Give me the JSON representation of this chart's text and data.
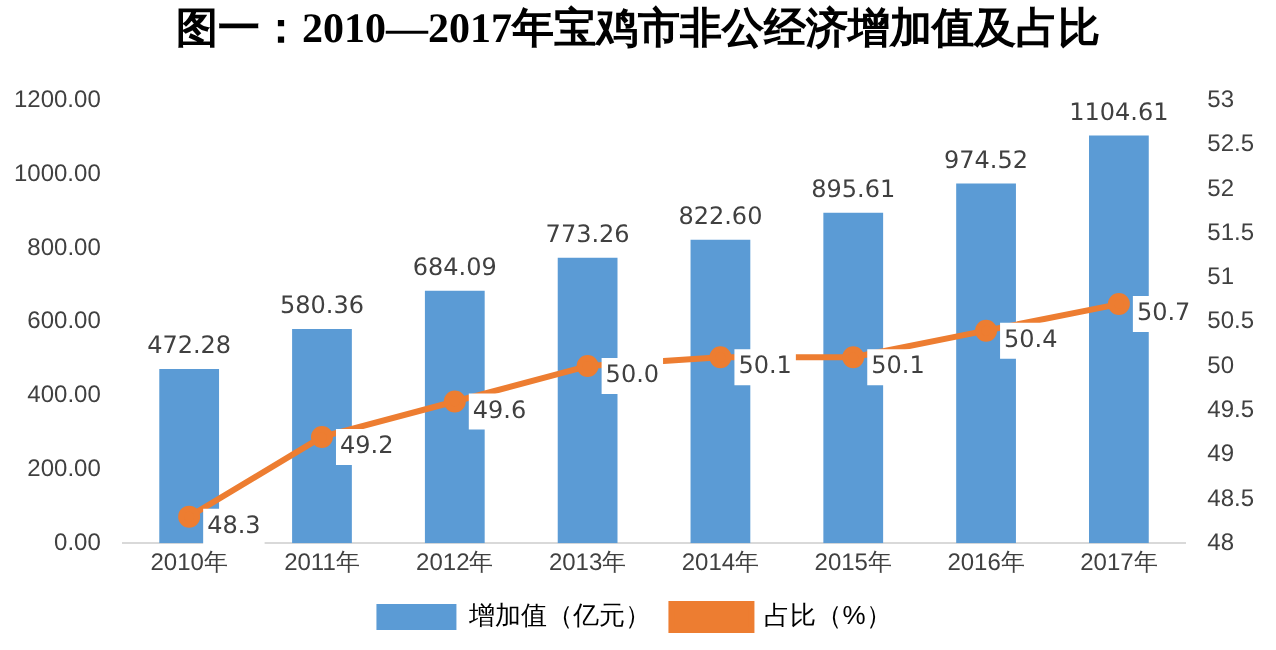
{
  "chart_data": {
    "type": "bar",
    "title": "图一：2010—2017年宝鸡市非公经济增加值及占比",
    "categories": [
      "2010年",
      "2011年",
      "2012年",
      "2013年",
      "2014年",
      "2015年",
      "2016年",
      "2017年"
    ],
    "series": [
      {
        "name": "增加值（亿元）",
        "color": "#5b9bd5",
        "values": [
          472.28,
          580.36,
          684.09,
          773.26,
          822.6,
          895.61,
          974.52,
          1104.61
        ],
        "value_labels": [
          "472.28",
          "580.36",
          "684.09",
          "773.26",
          "822.60",
          "895.61",
          "974.52",
          "1104.61"
        ]
      },
      {
        "name": "占比（%）",
        "type": "line",
        "axis": "y2",
        "color": "#ed7d31",
        "marker": "circle",
        "values": [
          48.3,
          49.2,
          49.6,
          50.0,
          50.1,
          50.1,
          50.4,
          50.7
        ],
        "value_labels": [
          "48.3",
          "49.2",
          "49.6",
          "50.0",
          "50.1",
          "50.1",
          "50.4",
          "50.7"
        ]
      }
    ],
    "ylim": [
      0,
      1200
    ],
    "yticks": [
      {
        "value": 0,
        "label": "0.00"
      },
      {
        "value": 200,
        "label": "200.00"
      },
      {
        "value": 400,
        "label": "400.00"
      },
      {
        "value": 600,
        "label": "600.00"
      },
      {
        "value": 800,
        "label": "800.00"
      },
      {
        "value": 1000,
        "label": "1000.00"
      },
      {
        "value": 1200,
        "label": "1200.00"
      }
    ],
    "y2lim": [
      48,
      53
    ],
    "y2ticks": [
      48,
      48.5,
      49,
      49.5,
      50,
      50.5,
      51,
      51.5,
      52,
      52.5,
      53
    ],
    "grid": false,
    "legend": "bottom"
  }
}
